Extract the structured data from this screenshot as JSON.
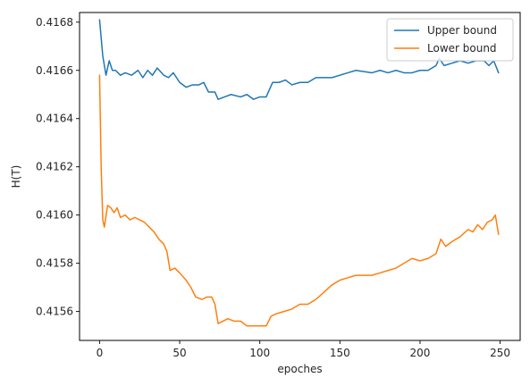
{
  "chart_data": {
    "type": "line",
    "title": "",
    "xlabel": "epoches",
    "ylabel": "H(T)",
    "xlim": [
      -12.5,
      262.5
    ],
    "ylim": [
      0.41548,
      0.41684
    ],
    "xticks": [
      0,
      50,
      100,
      150,
      200,
      250
    ],
    "xtick_labels": [
      "0",
      "50",
      "100",
      "150",
      "200",
      "250"
    ],
    "yticks": [
      0.4156,
      0.4158,
      0.416,
      0.4162,
      0.4164,
      0.4166,
      0.4168
    ],
    "ytick_labels": [
      "0.4156",
      "0.4158",
      "0.4160",
      "0.4162",
      "0.4164",
      "0.4166",
      "0.4168"
    ],
    "grid": false,
    "legend_position": "top-right",
    "series": [
      {
        "name": "Upper bound",
        "color": "#1f77b4",
        "points": [
          [
            0,
            0.41681
          ],
          [
            2,
            0.41666
          ],
          [
            4,
            0.41658
          ],
          [
            6,
            0.41664
          ],
          [
            8,
            0.4166
          ],
          [
            10,
            0.4166
          ],
          [
            13,
            0.41658
          ],
          [
            16,
            0.41659
          ],
          [
            20,
            0.41658
          ],
          [
            24,
            0.4166
          ],
          [
            27,
            0.41657
          ],
          [
            30,
            0.4166
          ],
          [
            33,
            0.41658
          ],
          [
            36,
            0.41661
          ],
          [
            40,
            0.41658
          ],
          [
            43,
            0.41657
          ],
          [
            46,
            0.41659
          ],
          [
            50,
            0.41655
          ],
          [
            54,
            0.41653
          ],
          [
            58,
            0.41654
          ],
          [
            62,
            0.41654
          ],
          [
            65,
            0.41655
          ],
          [
            68,
            0.41651
          ],
          [
            72,
            0.41651
          ],
          [
            74,
            0.41648
          ],
          [
            78,
            0.41649
          ],
          [
            82,
            0.4165
          ],
          [
            88,
            0.41649
          ],
          [
            92,
            0.4165
          ],
          [
            96,
            0.41648
          ],
          [
            100,
            0.41649
          ],
          [
            104,
            0.41649
          ],
          [
            106,
            0.41652
          ],
          [
            108,
            0.41655
          ],
          [
            112,
            0.41655
          ],
          [
            116,
            0.41656
          ],
          [
            120,
            0.41654
          ],
          [
            125,
            0.41655
          ],
          [
            130,
            0.41655
          ],
          [
            135,
            0.41657
          ],
          [
            140,
            0.41657
          ],
          [
            145,
            0.41657
          ],
          [
            150,
            0.41658
          ],
          [
            155,
            0.41659
          ],
          [
            160,
            0.4166
          ],
          [
            170,
            0.41659
          ],
          [
            175,
            0.4166
          ],
          [
            180,
            0.41659
          ],
          [
            185,
            0.4166
          ],
          [
            190,
            0.41659
          ],
          [
            195,
            0.41659
          ],
          [
            200,
            0.4166
          ],
          [
            205,
            0.4166
          ],
          [
            210,
            0.41662
          ],
          [
            212,
            0.41665
          ],
          [
            215,
            0.41662
          ],
          [
            220,
            0.41663
          ],
          [
            225,
            0.41664
          ],
          [
            230,
            0.41663
          ],
          [
            235,
            0.41664
          ],
          [
            240,
            0.41664
          ],
          [
            243,
            0.41662
          ],
          [
            246,
            0.41664
          ],
          [
            249,
            0.41659
          ]
        ]
      },
      {
        "name": "Lower bound",
        "color": "#ff7f0e",
        "points": [
          [
            0,
            0.41658
          ],
          [
            1,
            0.4162
          ],
          [
            2,
            0.41598
          ],
          [
            3,
            0.41595
          ],
          [
            5,
            0.41604
          ],
          [
            7,
            0.41603
          ],
          [
            9,
            0.41601
          ],
          [
            11,
            0.41603
          ],
          [
            13,
            0.41599
          ],
          [
            16,
            0.416
          ],
          [
            19,
            0.41598
          ],
          [
            22,
            0.41599
          ],
          [
            25,
            0.41598
          ],
          [
            28,
            0.41597
          ],
          [
            31,
            0.41595
          ],
          [
            34,
            0.41593
          ],
          [
            37,
            0.4159
          ],
          [
            40,
            0.41588
          ],
          [
            42,
            0.41585
          ],
          [
            44,
            0.41577
          ],
          [
            47,
            0.41578
          ],
          [
            50,
            0.41576
          ],
          [
            54,
            0.41573
          ],
          [
            57,
            0.4157
          ],
          [
            60,
            0.41566
          ],
          [
            64,
            0.41565
          ],
          [
            67,
            0.41566
          ],
          [
            70,
            0.41566
          ],
          [
            72,
            0.41563
          ],
          [
            74,
            0.41555
          ],
          [
            77,
            0.41556
          ],
          [
            80,
            0.41557
          ],
          [
            84,
            0.41556
          ],
          [
            88,
            0.41556
          ],
          [
            92,
            0.41554
          ],
          [
            96,
            0.41554
          ],
          [
            100,
            0.41554
          ],
          [
            104,
            0.41554
          ],
          [
            107,
            0.41558
          ],
          [
            110,
            0.41559
          ],
          [
            115,
            0.4156
          ],
          [
            120,
            0.41561
          ],
          [
            125,
            0.41563
          ],
          [
            130,
            0.41563
          ],
          [
            135,
            0.41565
          ],
          [
            140,
            0.41568
          ],
          [
            145,
            0.41571
          ],
          [
            150,
            0.41573
          ],
          [
            155,
            0.41574
          ],
          [
            160,
            0.41575
          ],
          [
            165,
            0.41575
          ],
          [
            170,
            0.41575
          ],
          [
            175,
            0.41576
          ],
          [
            180,
            0.41577
          ],
          [
            185,
            0.41578
          ],
          [
            190,
            0.4158
          ],
          [
            195,
            0.41582
          ],
          [
            200,
            0.41581
          ],
          [
            205,
            0.41582
          ],
          [
            210,
            0.41584
          ],
          [
            213,
            0.4159
          ],
          [
            216,
            0.41587
          ],
          [
            220,
            0.41589
          ],
          [
            225,
            0.41591
          ],
          [
            230,
            0.41594
          ],
          [
            233,
            0.41593
          ],
          [
            236,
            0.41596
          ],
          [
            239,
            0.41594
          ],
          [
            242,
            0.41597
          ],
          [
            245,
            0.41598
          ],
          [
            247,
            0.416
          ],
          [
            249,
            0.41592
          ]
        ]
      }
    ]
  }
}
